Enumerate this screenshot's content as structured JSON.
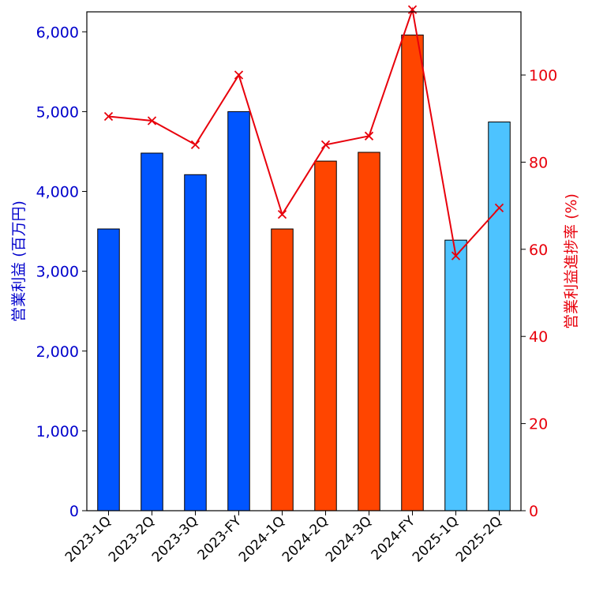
{
  "chart_data": {
    "type": "bar",
    "categories": [
      "2023-1Q",
      "2023-2Q",
      "2023-3Q",
      "2023-FY",
      "2024-1Q",
      "2024-2Q",
      "2024-3Q",
      "2024-FY",
      "2025-1Q",
      "2025-2Q"
    ],
    "series": [
      {
        "type": "bar",
        "axis": "left",
        "values": [
          3530,
          4480,
          4210,
          5000,
          3530,
          4380,
          4490,
          5960,
          3390,
          4870
        ],
        "colors": [
          "#0055ff",
          "#0055ff",
          "#0055ff",
          "#0055ff",
          "#ff4500",
          "#ff4500",
          "#ff4500",
          "#ff4500",
          "#4dc3ff",
          "#4dc3ff"
        ]
      },
      {
        "type": "line",
        "axis": "right",
        "marker": "x",
        "color": "#e8000b",
        "values": [
          90.5,
          89.5,
          84.0,
          100.0,
          68.0,
          84.0,
          86.0,
          115.0,
          58.5,
          69.5
        ]
      }
    ],
    "ylabel": "営業利益 (百万円)",
    "ylabel_right": "営業利益進捗率 (%)",
    "ylim": [
      0,
      6250
    ],
    "ylim_right": [
      0,
      114.5
    ],
    "yticks": [
      "0",
      "1,000",
      "2,000",
      "3,000",
      "4,000",
      "5,000",
      "6,000"
    ],
    "yticks_right": [
      "0",
      "20",
      "40",
      "60",
      "80",
      "100"
    ],
    "ytick_values": [
      0,
      1000,
      2000,
      3000,
      4000,
      5000,
      6000
    ],
    "ytick_values_right": [
      0,
      20,
      40,
      60,
      80,
      100
    ],
    "left_axis_color": "#0000cc",
    "right_axis_color": "#e8000b",
    "grid": false,
    "legend": "none"
  }
}
